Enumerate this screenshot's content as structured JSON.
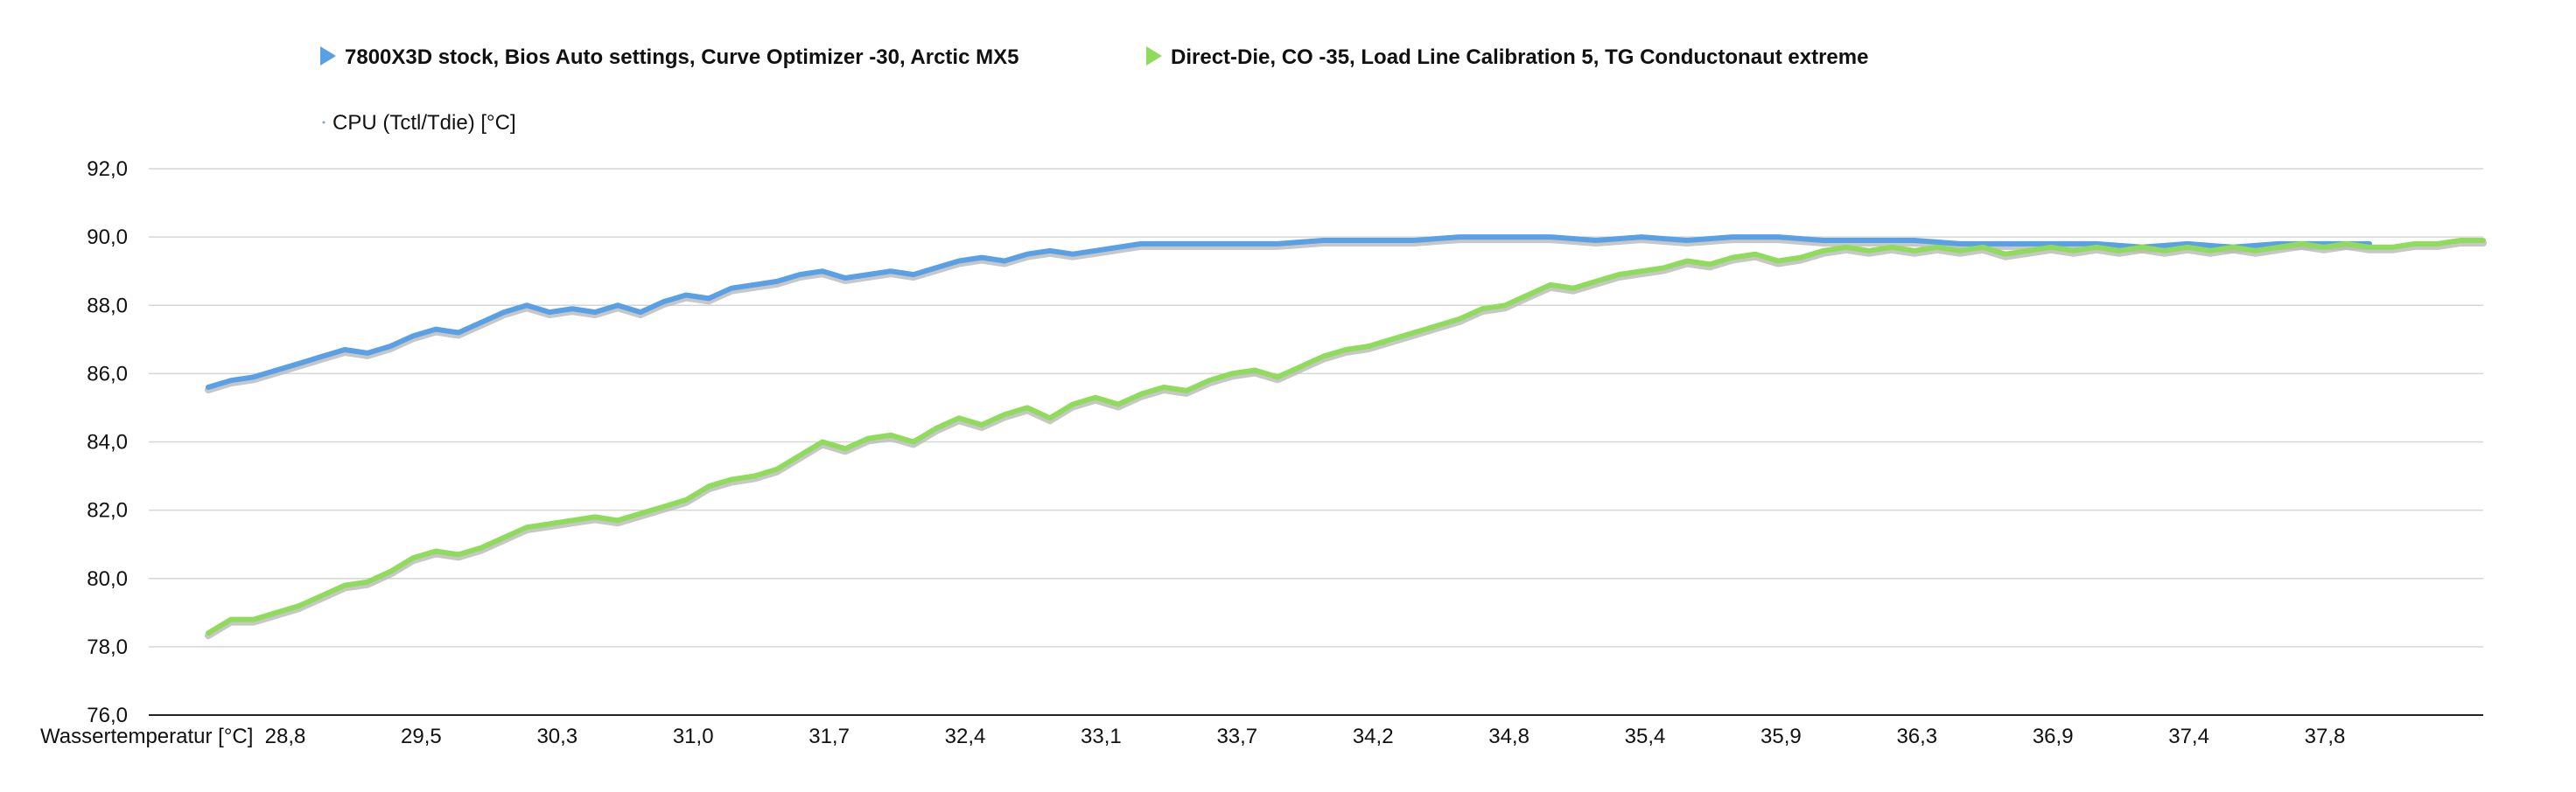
{
  "chart_data": {
    "type": "line",
    "title": "",
    "xlabel": "Wassertemperatur [°C]",
    "ylabel": "CPU (Tctl/Tdie) [°C]",
    "ylim": [
      76,
      92
    ],
    "yticks": [
      "92,0",
      "90,0",
      "88,0",
      "86,0",
      "84,0",
      "82,0",
      "80,0",
      "78,0",
      "76,0"
    ],
    "xticks": [
      "28,8",
      "29,5",
      "30,3",
      "31,0",
      "31,7",
      "32,4",
      "33,1",
      "33,7",
      "34,2",
      "34,8",
      "35,4",
      "35,9",
      "36,3",
      "36,9",
      "37,4",
      "37,8"
    ],
    "x_domain": [
      0,
      100
    ],
    "grid": true,
    "legend_position": "top",
    "series": [
      {
        "name": "7800X3D stock, Bios Auto settings, Curve Optimizer -30, Arctic MX5",
        "color": "#5aa0e6",
        "points": [
          [
            0,
            85.6
          ],
          [
            1,
            85.8
          ],
          [
            2,
            85.9
          ],
          [
            3,
            86.1
          ],
          [
            4,
            86.3
          ],
          [
            5,
            86.5
          ],
          [
            6,
            86.7
          ],
          [
            7,
            86.6
          ],
          [
            8,
            86.8
          ],
          [
            9,
            87.1
          ],
          [
            10,
            87.3
          ],
          [
            11,
            87.2
          ],
          [
            12,
            87.5
          ],
          [
            13,
            87.8
          ],
          [
            14,
            88.0
          ],
          [
            15,
            87.8
          ],
          [
            16,
            87.9
          ],
          [
            17,
            87.8
          ],
          [
            18,
            88.0
          ],
          [
            19,
            87.8
          ],
          [
            20,
            88.1
          ],
          [
            21,
            88.3
          ],
          [
            22,
            88.2
          ],
          [
            23,
            88.5
          ],
          [
            24,
            88.6
          ],
          [
            25,
            88.7
          ],
          [
            26,
            88.9
          ],
          [
            27,
            89.0
          ],
          [
            28,
            88.8
          ],
          [
            29,
            88.9
          ],
          [
            30,
            89.0
          ],
          [
            31,
            88.9
          ],
          [
            32,
            89.1
          ],
          [
            33,
            89.3
          ],
          [
            34,
            89.4
          ],
          [
            35,
            89.3
          ],
          [
            36,
            89.5
          ],
          [
            37,
            89.6
          ],
          [
            38,
            89.5
          ],
          [
            39,
            89.6
          ],
          [
            40,
            89.7
          ],
          [
            41,
            89.8
          ],
          [
            43,
            89.8
          ],
          [
            45,
            89.8
          ],
          [
            47,
            89.8
          ],
          [
            49,
            89.9
          ],
          [
            51,
            89.9
          ],
          [
            53,
            89.9
          ],
          [
            55,
            90.0
          ],
          [
            57,
            90.0
          ],
          [
            59,
            90.0
          ],
          [
            61,
            89.9
          ],
          [
            63,
            90.0
          ],
          [
            65,
            89.9
          ],
          [
            67,
            90.0
          ],
          [
            69,
            90.0
          ],
          [
            71,
            89.9
          ],
          [
            73,
            89.9
          ],
          [
            75,
            89.9
          ],
          [
            77,
            89.8
          ],
          [
            79,
            89.8
          ],
          [
            81,
            89.8
          ],
          [
            83,
            89.8
          ],
          [
            85,
            89.7
          ],
          [
            87,
            89.8
          ],
          [
            89,
            89.7
          ],
          [
            91,
            89.8
          ],
          [
            93,
            89.8
          ],
          [
            95,
            89.8
          ]
        ]
      },
      {
        "name": "Direct-Die, CO -35, Load Line Calibration 5, TG Conductonaut extreme",
        "color": "#8fdc5c",
        "points": [
          [
            0,
            78.4
          ],
          [
            1,
            78.8
          ],
          [
            2,
            78.8
          ],
          [
            3,
            79.0
          ],
          [
            4,
            79.2
          ],
          [
            5,
            79.5
          ],
          [
            6,
            79.8
          ],
          [
            7,
            79.9
          ],
          [
            8,
            80.2
          ],
          [
            9,
            80.6
          ],
          [
            10,
            80.8
          ],
          [
            11,
            80.7
          ],
          [
            12,
            80.9
          ],
          [
            13,
            81.2
          ],
          [
            14,
            81.5
          ],
          [
            15,
            81.6
          ],
          [
            16,
            81.7
          ],
          [
            17,
            81.8
          ],
          [
            18,
            81.7
          ],
          [
            19,
            81.9
          ],
          [
            20,
            82.1
          ],
          [
            21,
            82.3
          ],
          [
            22,
            82.7
          ],
          [
            23,
            82.9
          ],
          [
            24,
            83.0
          ],
          [
            25,
            83.2
          ],
          [
            26,
            83.6
          ],
          [
            27,
            84.0
          ],
          [
            28,
            83.8
          ],
          [
            29,
            84.1
          ],
          [
            30,
            84.2
          ],
          [
            31,
            84.0
          ],
          [
            32,
            84.4
          ],
          [
            33,
            84.7
          ],
          [
            34,
            84.5
          ],
          [
            35,
            84.8
          ],
          [
            36,
            85.0
          ],
          [
            37,
            84.7
          ],
          [
            38,
            85.1
          ],
          [
            39,
            85.3
          ],
          [
            40,
            85.1
          ],
          [
            41,
            85.4
          ],
          [
            42,
            85.6
          ],
          [
            43,
            85.5
          ],
          [
            44,
            85.8
          ],
          [
            45,
            86.0
          ],
          [
            46,
            86.1
          ],
          [
            47,
            85.9
          ],
          [
            48,
            86.2
          ],
          [
            49,
            86.5
          ],
          [
            50,
            86.7
          ],
          [
            51,
            86.8
          ],
          [
            52,
            87.0
          ],
          [
            53,
            87.2
          ],
          [
            54,
            87.4
          ],
          [
            55,
            87.6
          ],
          [
            56,
            87.9
          ],
          [
            57,
            88.0
          ],
          [
            58,
            88.3
          ],
          [
            59,
            88.6
          ],
          [
            60,
            88.5
          ],
          [
            61,
            88.7
          ],
          [
            62,
            88.9
          ],
          [
            63,
            89.0
          ],
          [
            64,
            89.1
          ],
          [
            65,
            89.3
          ],
          [
            66,
            89.2
          ],
          [
            67,
            89.4
          ],
          [
            68,
            89.5
          ],
          [
            69,
            89.3
          ],
          [
            70,
            89.4
          ],
          [
            71,
            89.6
          ],
          [
            72,
            89.7
          ],
          [
            73,
            89.6
          ],
          [
            74,
            89.7
          ],
          [
            75,
            89.6
          ],
          [
            76,
            89.7
          ],
          [
            77,
            89.6
          ],
          [
            78,
            89.7
          ],
          [
            79,
            89.5
          ],
          [
            80,
            89.6
          ],
          [
            81,
            89.7
          ],
          [
            82,
            89.6
          ],
          [
            83,
            89.7
          ],
          [
            84,
            89.6
          ],
          [
            85,
            89.7
          ],
          [
            86,
            89.6
          ],
          [
            87,
            89.7
          ],
          [
            88,
            89.6
          ],
          [
            89,
            89.7
          ],
          [
            90,
            89.6
          ],
          [
            91,
            89.7
          ],
          [
            92,
            89.8
          ],
          [
            93,
            89.7
          ],
          [
            94,
            89.8
          ],
          [
            95,
            89.7
          ],
          [
            96,
            89.7
          ],
          [
            97,
            89.8
          ],
          [
            98,
            89.8
          ],
          [
            99,
            89.9
          ],
          [
            100,
            89.9
          ]
        ]
      }
    ]
  }
}
